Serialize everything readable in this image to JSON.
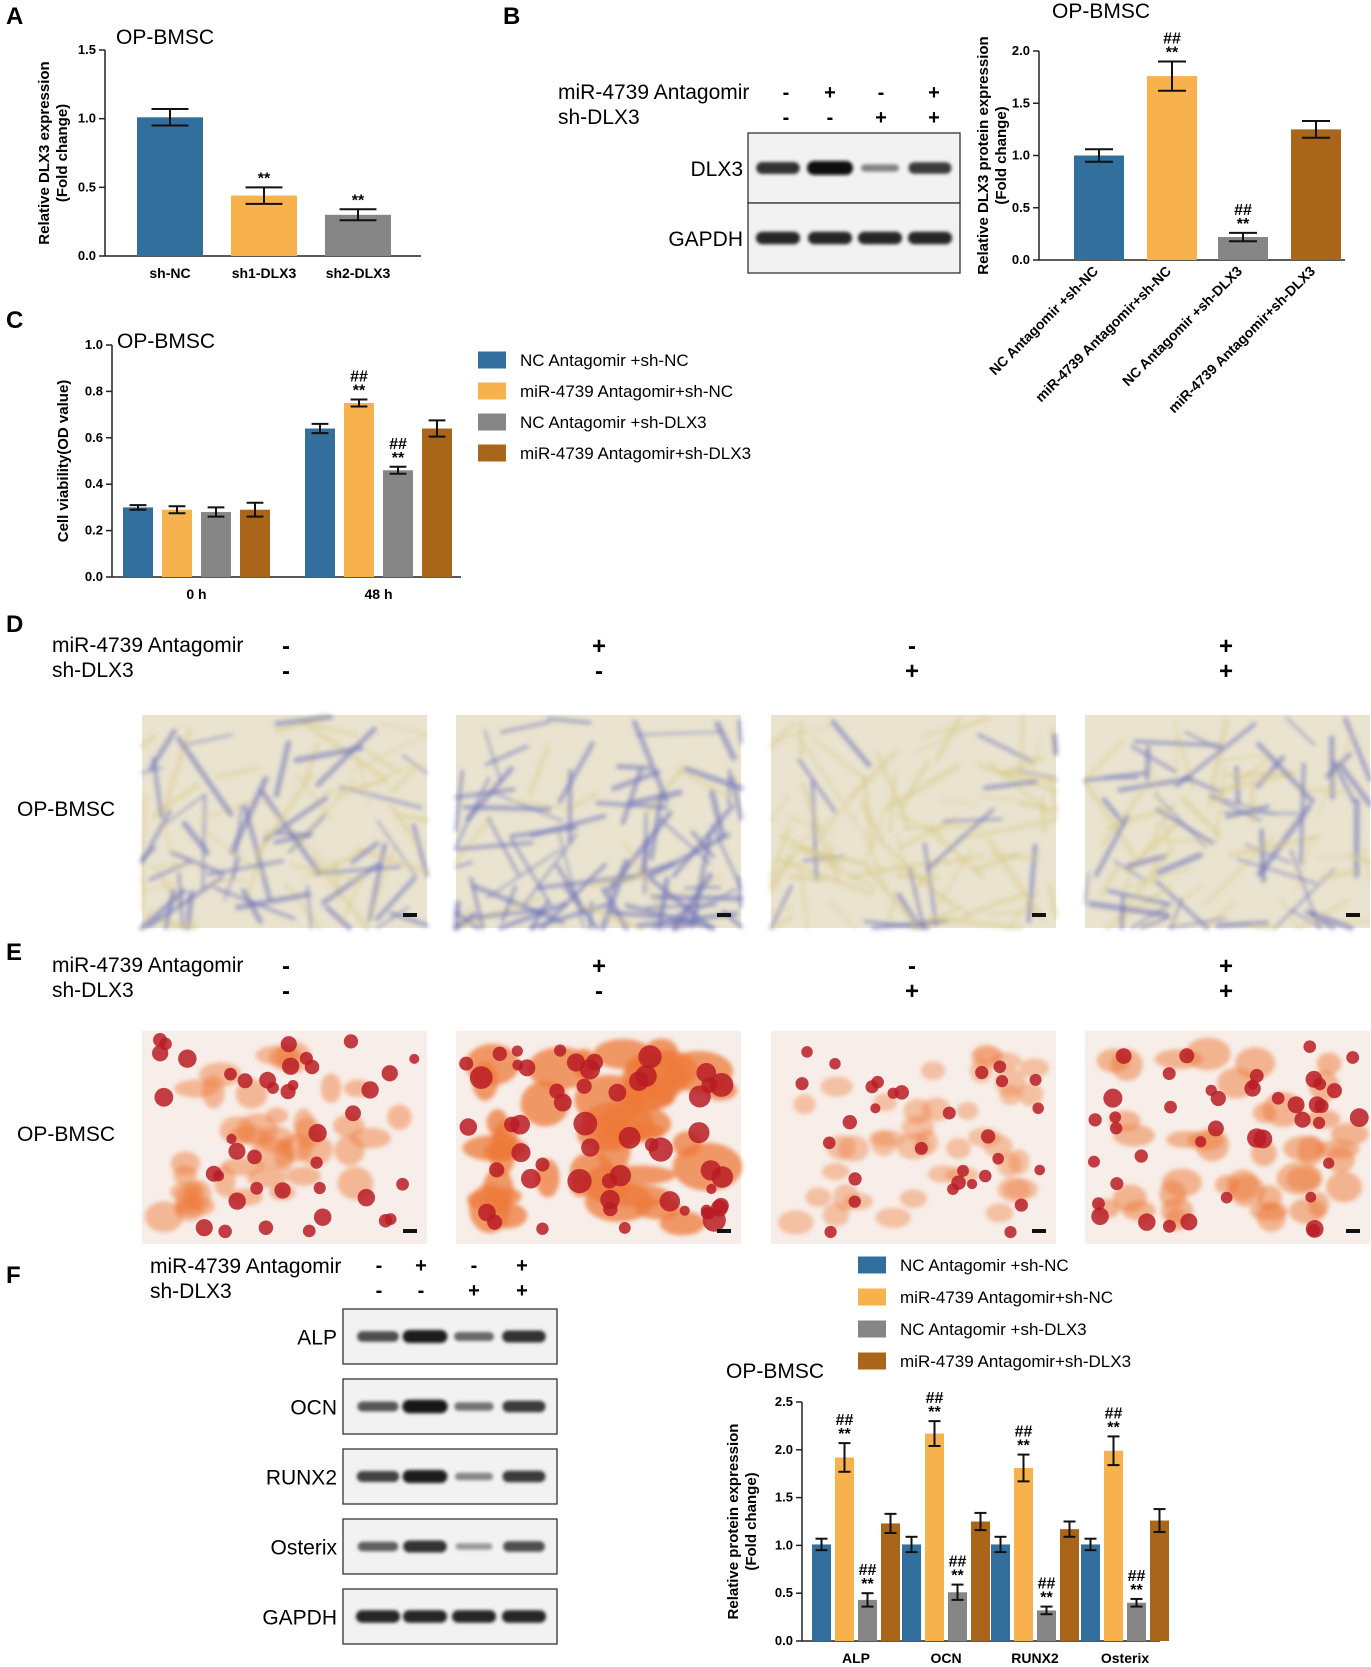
{
  "panels": {
    "A": "A",
    "B": "B",
    "C": "C",
    "D": "D",
    "E": "E",
    "F": "F"
  },
  "colors": {
    "s1": "#336f9d",
    "s2": "#f8b24d",
    "s3": "#868686",
    "s4": "#a9651a"
  },
  "legend": [
    "NC Antagomir +sh-NC",
    "miR-4739 Antagomir+sh-NC",
    "NC Antagomir +sh-DLX3",
    "miR-4739 Antagomir+sh-DLX3"
  ],
  "blots": {
    "row1_label": "miR-4739 Antagomir",
    "row2_label": "sh-DLX3",
    "row1_signs": [
      "-",
      "+",
      "-",
      "+"
    ],
    "row2_signs": [
      "-",
      "-",
      "+",
      "+"
    ],
    "panel_b_bands": [
      "DLX3",
      "GAPDH"
    ],
    "panel_f_bands": [
      "ALP",
      "OCN",
      "RUNX2",
      "Osterix",
      "GAPDH"
    ],
    "band_intensity_b": {
      "DLX3": [
        0.8,
        1.0,
        0.35,
        0.75
      ],
      "GAPDH": [
        0.85,
        0.85,
        0.85,
        0.85
      ]
    },
    "band_intensity_f": {
      "ALP": [
        0.65,
        0.9,
        0.5,
        0.8
      ],
      "OCN": [
        0.6,
        0.95,
        0.45,
        0.75
      ],
      "RUNX2": [
        0.7,
        0.9,
        0.35,
        0.75
      ],
      "Osterix": [
        0.55,
        0.8,
        0.25,
        0.65
      ],
      "GAPDH": [
        0.85,
        0.85,
        0.85,
        0.85
      ]
    }
  },
  "stain_row_label": "OP-BMSC",
  "chart_data": [
    {
      "id": "A",
      "type": "bar",
      "title": "OP-BMSC",
      "ylabel": "Relative DLX3 expression\n(Fold change)",
      "categories": [
        "sh-NC",
        "sh1-DLX3",
        "sh2-DLX3"
      ],
      "values": [
        1.01,
        0.44,
        0.3
      ],
      "errors": [
        0.06,
        0.06,
        0.04
      ],
      "sig": [
        "",
        "**",
        "**"
      ],
      "ylim": [
        0,
        1.5
      ],
      "yticks": [
        "0.0",
        "0.5",
        "1.0",
        "1.5"
      ]
    },
    {
      "id": "B",
      "type": "bar",
      "title": "OP-BMSC",
      "ylabel": "Relative DLX3 protein expression\n(Fold change)",
      "categories": [
        "NC Antagomir +sh-NC",
        "miR-4739 Antagomir+sh-NC",
        "NC Antagomir +sh-DLX3",
        "miR-4739 Antagomir+sh-DLX3"
      ],
      "values": [
        1.0,
        1.76,
        0.22,
        1.25
      ],
      "errors": [
        0.06,
        0.14,
        0.04,
        0.08
      ],
      "sig": [
        "",
        "##\n**",
        "##\n**",
        ""
      ],
      "ylim": [
        0,
        2.0
      ],
      "yticks": [
        "0.0",
        "0.5",
        "1.0",
        "1.5",
        "2.0"
      ]
    },
    {
      "id": "C",
      "type": "bar",
      "title": "OP-BMSC",
      "ylabel": "Cell viability(OD value)",
      "categories": [
        "0 h",
        "48 h"
      ],
      "series": [
        {
          "name": "NC Antagomir +sh-NC",
          "values": [
            0.3,
            0.64
          ],
          "errors": [
            0.01,
            0.02
          ],
          "sig": [
            "",
            ""
          ]
        },
        {
          "name": "miR-4739 Antagomir+sh-NC",
          "values": [
            0.29,
            0.75
          ],
          "errors": [
            0.015,
            0.015
          ],
          "sig": [
            "",
            "##\n**"
          ]
        },
        {
          "name": "NC Antagomir +sh-DLX3",
          "values": [
            0.28,
            0.46
          ],
          "errors": [
            0.02,
            0.015
          ],
          "sig": [
            "",
            "##\n**"
          ]
        },
        {
          "name": "miR-4739 Antagomir+sh-DLX3",
          "values": [
            0.29,
            0.64
          ],
          "errors": [
            0.03,
            0.035
          ],
          "sig": [
            "",
            ""
          ]
        }
      ],
      "ylim": [
        0,
        1.0
      ],
      "yticks": [
        "0.0",
        "0.2",
        "0.4",
        "0.6",
        "0.8",
        "1.0"
      ]
    },
    {
      "id": "F",
      "type": "bar",
      "title": "OP-BMSC",
      "ylabel": "Relative protein expression\n(Fold change)",
      "categories": [
        "ALP",
        "OCN",
        "RUNX2",
        "Osterix"
      ],
      "series": [
        {
          "name": "NC Antagomir +sh-NC",
          "values": [
            1.01,
            1.01,
            1.01,
            1.01
          ],
          "errors": [
            0.06,
            0.08,
            0.08,
            0.06
          ],
          "sig": [
            "",
            "",
            "",
            ""
          ]
        },
        {
          "name": "miR-4739 Antagomir+sh-NC",
          "values": [
            1.92,
            2.17,
            1.81,
            1.99
          ],
          "errors": [
            0.15,
            0.13,
            0.14,
            0.15
          ],
          "sig": [
            "##\n**",
            "##\n**",
            "##\n**",
            "##\n**"
          ]
        },
        {
          "name": "NC Antagomir +sh-DLX3",
          "values": [
            0.43,
            0.51,
            0.32,
            0.4
          ],
          "errors": [
            0.07,
            0.08,
            0.04,
            0.04
          ],
          "sig": [
            "##\n**",
            "##\n**",
            "##\n**",
            "##\n**"
          ]
        },
        {
          "name": "miR-4739 Antagomir+sh-DLX3",
          "values": [
            1.23,
            1.25,
            1.17,
            1.26
          ],
          "errors": [
            0.1,
            0.09,
            0.08,
            0.12
          ],
          "sig": [
            "",
            "",
            "",
            ""
          ]
        }
      ],
      "ylim": [
        0,
        2.5
      ],
      "yticks": [
        "0.0",
        "0.5",
        "1.0",
        "1.5",
        "2.0",
        "2.5"
      ]
    }
  ]
}
